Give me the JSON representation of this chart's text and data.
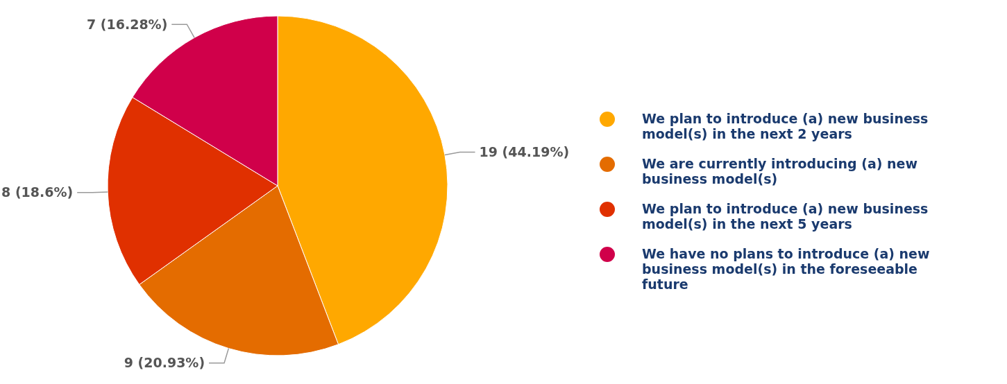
{
  "chart_data": {
    "type": "pie",
    "categories": [
      "We plan to introduce (a) new business model(s) in the next 2 years",
      "We are currently introducing (a) new business model(s)",
      "We plan to introduce (a) new business model(s) in the next 5 years",
      "We have no plans to introduce (a) new business model(s) in the foreseeable future"
    ],
    "values": [
      19,
      9,
      8,
      7
    ],
    "colors": [
      "#ffa800",
      "#e46c00",
      "#e03000",
      "#d0004a"
    ],
    "value_labels": [
      "19 (44.19%)",
      "9 (20.93%)",
      "8 (18.6%)",
      "7 (16.28%)"
    ],
    "legend": "right"
  }
}
